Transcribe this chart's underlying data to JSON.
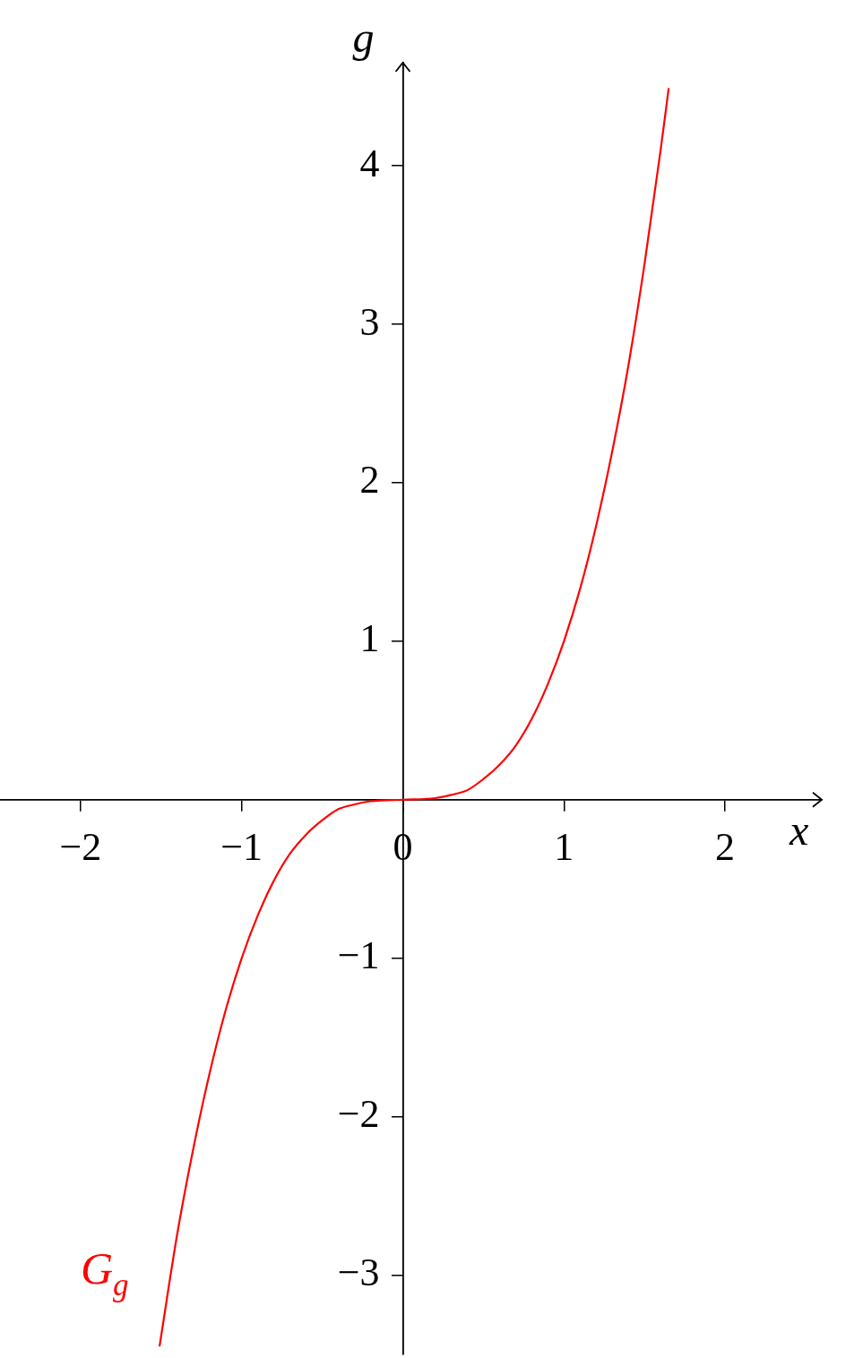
{
  "chart_data": {
    "type": "line",
    "xlabel": "x",
    "ylabel": "g",
    "xlim": [
      -2.5,
      2.6
    ],
    "ylim": [
      -3.5,
      4.65
    ],
    "xticks": [
      {
        "value": -2,
        "label": "−2"
      },
      {
        "value": -1,
        "label": "−1"
      },
      0,
      1,
      2
    ],
    "yticks": [
      {
        "value": -3,
        "label": "−3"
      },
      {
        "value": -2,
        "label": "−2"
      },
      {
        "value": -1,
        "label": "−1"
      },
      1,
      2,
      3,
      4
    ],
    "grid": false,
    "legend": false,
    "marker": "none",
    "line_style": "solid",
    "series": [
      {
        "name": "G$_{g}$",
        "color": "#ff0000",
        "x": [
          -1.51,
          -1.4,
          -1.3,
          -1.2,
          -1.1,
          -1.0,
          -0.9,
          -0.8,
          -0.7,
          -0.6,
          -0.5,
          -0.4,
          -0.3,
          -0.2,
          0,
          0.2,
          0.3,
          0.4,
          0.5,
          0.6,
          0.7,
          0.8,
          0.9,
          1.0,
          1.1,
          1.2,
          1.3,
          1.4,
          1.5,
          1.6,
          1.65
        ],
        "values": [
          -3.45,
          -2.74,
          -2.2,
          -1.73,
          -1.33,
          -1.0,
          -0.73,
          -0.51,
          -0.34,
          -0.22,
          -0.13,
          -0.06,
          -0.03,
          -0.01,
          0,
          0.01,
          0.03,
          0.06,
          0.13,
          0.22,
          0.34,
          0.51,
          0.73,
          1.0,
          1.33,
          1.73,
          2.2,
          2.74,
          3.38,
          4.1,
          4.49
        ]
      }
    ]
  }
}
